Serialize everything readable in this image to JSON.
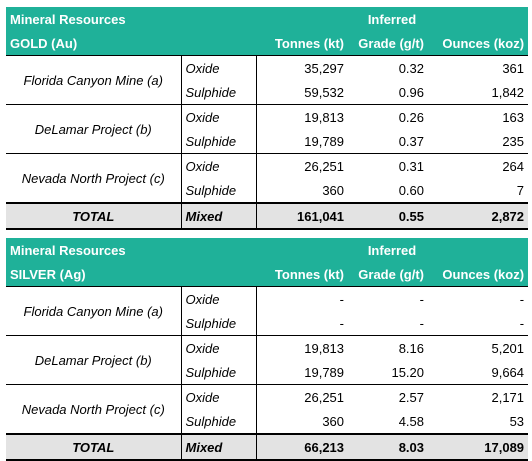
{
  "gold": {
    "title": "Mineral Resources",
    "metal": "GOLD (Au)",
    "category": "Inferred",
    "columns": [
      "Tonnes (kt)",
      "Grade (g/t)",
      "Ounces (koz)"
    ],
    "rows": [
      {
        "project": "Florida Canyon Mine (a)",
        "items": [
          {
            "type": "Oxide",
            "tonnes": "35,297",
            "grade": "0.32",
            "ounces": "361"
          },
          {
            "type": "Sulphide",
            "tonnes": "59,532",
            "grade": "0.96",
            "ounces": "1,842"
          }
        ]
      },
      {
        "project": "DeLamar Project (b)",
        "items": [
          {
            "type": "Oxide",
            "tonnes": "19,813",
            "grade": "0.26",
            "ounces": "163"
          },
          {
            "type": "Sulphide",
            "tonnes": "19,789",
            "grade": "0.37",
            "ounces": "235"
          }
        ]
      },
      {
        "project": "Nevada North Project (c)",
        "items": [
          {
            "type": "Oxide",
            "tonnes": "26,251",
            "grade": "0.31",
            "ounces": "264"
          },
          {
            "type": "Sulphide",
            "tonnes": "360",
            "grade": "0.60",
            "ounces": "7"
          }
        ]
      }
    ],
    "total": {
      "label": "TOTAL",
      "type": "Mixed",
      "tonnes": "161,041",
      "grade": "0.55",
      "ounces": "2,872"
    }
  },
  "silver": {
    "title": "Mineral Resources",
    "metal": "SILVER (Ag)",
    "category": "Inferred",
    "columns": [
      "Tonnes (kt)",
      "Grade (g/t)",
      "Ounces (koz)"
    ],
    "rows": [
      {
        "project": "Florida Canyon Mine (a)",
        "items": [
          {
            "type": "Oxide",
            "tonnes": "-",
            "grade": "-",
            "ounces": "-"
          },
          {
            "type": "Sulphide",
            "tonnes": "-",
            "grade": "-",
            "ounces": "-"
          }
        ]
      },
      {
        "project": "DeLamar Project (b)",
        "items": [
          {
            "type": "Oxide",
            "tonnes": "19,813",
            "grade": "8.16",
            "ounces": "5,201"
          },
          {
            "type": "Sulphide",
            "tonnes": "19,789",
            "grade": "15.20",
            "ounces": "9,664"
          }
        ]
      },
      {
        "project": "Nevada North Project (c)",
        "items": [
          {
            "type": "Oxide",
            "tonnes": "26,251",
            "grade": "2.57",
            "ounces": "2,171"
          },
          {
            "type": "Sulphide",
            "tonnes": "360",
            "grade": "4.58",
            "ounces": "53"
          }
        ]
      }
    ],
    "total": {
      "label": "TOTAL",
      "type": "Mixed",
      "tonnes": "66,213",
      "grade": "8.03",
      "ounces": "17,089"
    }
  }
}
